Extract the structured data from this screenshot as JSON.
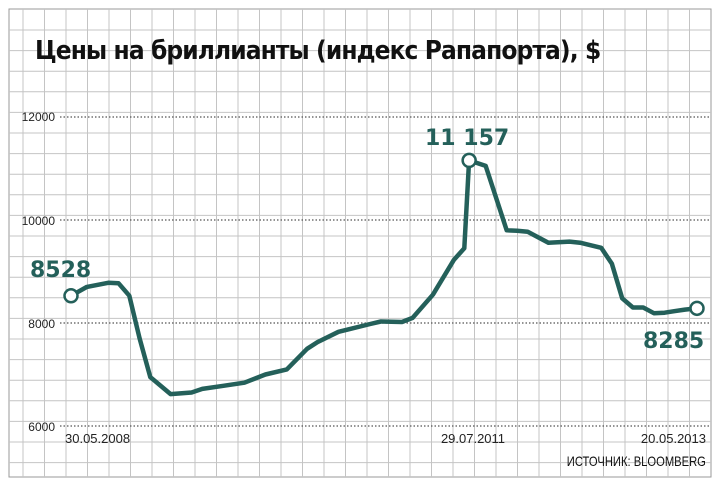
{
  "chart_data": {
    "type": "line",
    "title": "Цены на бриллианты (индекс Рапапорта), $",
    "source": "ИСТОЧНИК: BLOOMBERG",
    "xlabel": "",
    "ylabel": "",
    "ylim": [
      6000,
      12000
    ],
    "yticks": [
      "12000",
      "10000",
      "8000",
      "6000"
    ],
    "x_tick_labels": [
      "30.05.2008",
      "29.07.2011",
      "20.05.2013"
    ],
    "grid": true,
    "line_color": "#24605a",
    "annotations": [
      {
        "label": "8528",
        "value": 8528
      },
      {
        "label": "11 157",
        "value": 11157
      },
      {
        "label": "8285",
        "value": 8285
      }
    ],
    "series": [
      {
        "x": [
          "2008-05-30",
          "2008-07",
          "2008-09",
          "2008-10",
          "2008-11",
          "2008-12",
          "2009-01",
          "2009-03",
          "2009-05",
          "2009-06",
          "2009-08",
          "2009-10",
          "2009-12",
          "2010-02",
          "2010-04",
          "2010-05",
          "2010-07",
          "2010-08",
          "2010-10",
          "2010-11",
          "2011-01",
          "2011-02",
          "2011-04",
          "2011-06",
          "2011-07",
          "2011-07-29",
          "2011-09",
          "2011-11",
          "2011-12",
          "2012-01",
          "2012-03",
          "2012-05",
          "2012-06",
          "2012-08",
          "2012-09",
          "2012-10",
          "2012-11",
          "2012-12",
          "2013-01",
          "2013-02",
          "2013-03",
          "2013-04",
          "2013-05-20"
        ],
        "y": [
          8528,
          8700,
          8780,
          8770,
          8530,
          7700,
          6950,
          6620,
          6650,
          6720,
          6780,
          6840,
          7000,
          7100,
          7500,
          7630,
          7830,
          7880,
          7980,
          8030,
          8020,
          8100,
          8550,
          9230,
          9450,
          11157,
          11050,
          9800,
          9790,
          9770,
          9560,
          9580,
          9560,
          9460,
          9150,
          8480,
          8300,
          8300,
          8190,
          8200,
          8230,
          8260,
          8285
        ]
      }
    ]
  }
}
